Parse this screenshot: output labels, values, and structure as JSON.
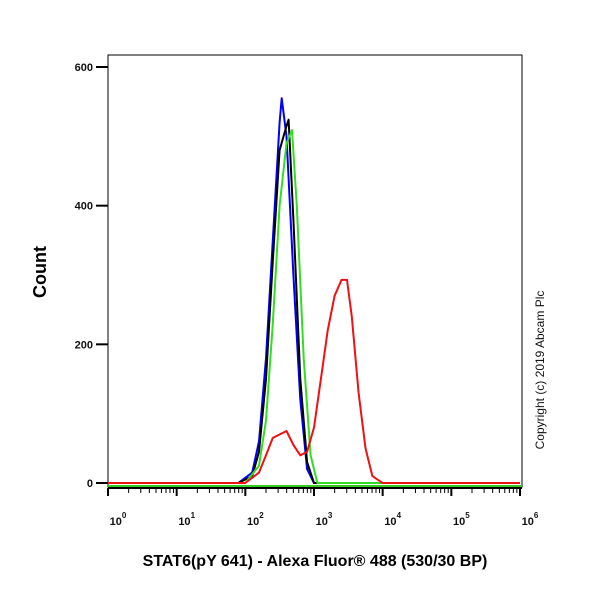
{
  "chart_data": {
    "type": "line",
    "title": "",
    "xlabel": "STAT6(pY 641) - Alexa Fluor® 488 (530/30 BP)",
    "ylabel": "Count",
    "x_scale": "log",
    "xlim": [
      1,
      1000000
    ],
    "ylim": [
      0,
      600
    ],
    "x_ticks": [
      {
        "base": "10",
        "exp": "0"
      },
      {
        "base": "10",
        "exp": "1"
      },
      {
        "base": "10",
        "exp": "2"
      },
      {
        "base": "10",
        "exp": "3"
      },
      {
        "base": "10",
        "exp": "4"
      },
      {
        "base": "10",
        "exp": "5"
      },
      {
        "base": "10",
        "exp": "6"
      }
    ],
    "y_ticks": [
      "0",
      "200",
      "400",
      "600"
    ],
    "grid": false,
    "legend": "none",
    "annotation": "Copyright (c) 2019 Abcam Plc",
    "series": [
      {
        "color": "#0000ff",
        "points": [
          [
            79,
            0
          ],
          [
            126,
            15
          ],
          [
            158,
            60
          ],
          [
            200,
            180
          ],
          [
            251,
            350
          ],
          [
            316,
            520
          ],
          [
            339,
            555
          ],
          [
            398,
            500
          ],
          [
            501,
            300
          ],
          [
            631,
            120
          ],
          [
            794,
            20
          ],
          [
            1000,
            0
          ]
        ]
      },
      {
        "color": "#000000",
        "points": [
          [
            79,
            0
          ],
          [
            126,
            10
          ],
          [
            158,
            45
          ],
          [
            200,
            150
          ],
          [
            251,
            320
          ],
          [
            316,
            480
          ],
          [
            398,
            515
          ],
          [
            427,
            524
          ],
          [
            501,
            380
          ],
          [
            631,
            150
          ],
          [
            794,
            30
          ],
          [
            1000,
            0
          ]
        ]
      },
      {
        "color": "#33dd22",
        "points": [
          [
            100,
            0
          ],
          [
            158,
            25
          ],
          [
            200,
            90
          ],
          [
            251,
            230
          ],
          [
            316,
            400
          ],
          [
            398,
            490
          ],
          [
            479,
            509
          ],
          [
            562,
            400
          ],
          [
            708,
            180
          ],
          [
            891,
            40
          ],
          [
            1122,
            0
          ]
        ]
      },
      {
        "color": "#ee1111",
        "points": [
          [
            100,
            0
          ],
          [
            158,
            15
          ],
          [
            200,
            40
          ],
          [
            251,
            65
          ],
          [
            316,
            70
          ],
          [
            398,
            75
          ],
          [
            501,
            55
          ],
          [
            631,
            40
          ],
          [
            794,
            45
          ],
          [
            1000,
            80
          ],
          [
            1259,
            150
          ],
          [
            1585,
            220
          ],
          [
            1995,
            270
          ],
          [
            2512,
            293
          ],
          [
            3020,
            293
          ],
          [
            3548,
            240
          ],
          [
            4467,
            130
          ],
          [
            5623,
            50
          ],
          [
            7079,
            10
          ],
          [
            10000,
            0
          ]
        ]
      }
    ]
  }
}
